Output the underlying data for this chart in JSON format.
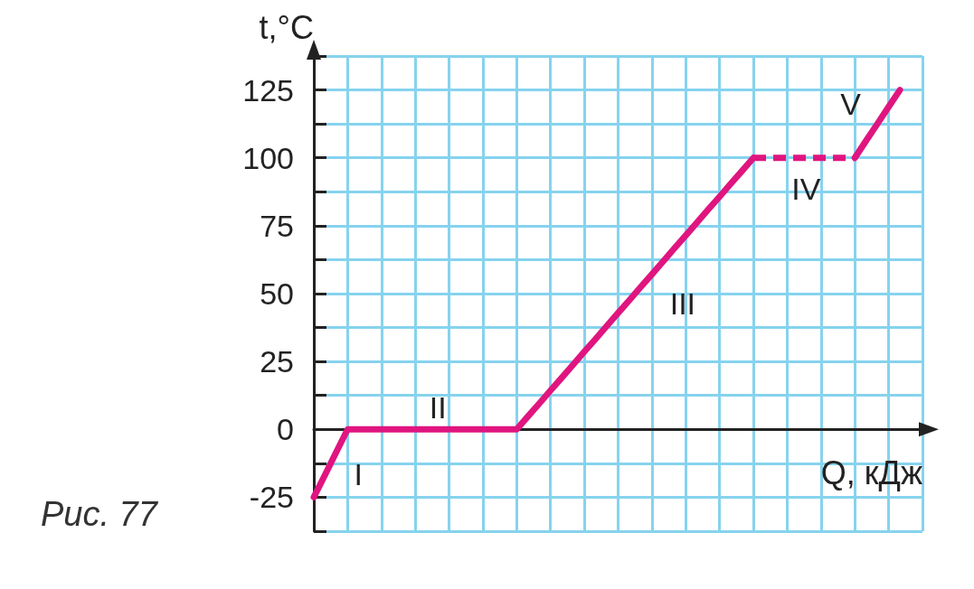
{
  "chart_data": {
    "type": "line",
    "xlabel": "Q, кДж",
    "ylabel": "t,°C",
    "categories": [
      null,
      null,
      null,
      null,
      null,
      null,
      null,
      null,
      null,
      null,
      null,
      null,
      null,
      null,
      null,
      null,
      null,
      null,
      null,
      null,
      null,
      null,
      null,
      null,
      null,
      null,
      null,
      null,
      null,
      null,
      null,
      null,
      null,
      null,
      null,
      null,
      null,
      null,
      null,
      null,
      null,
      null,
      null,
      null,
      null,
      null,
      null,
      null,
      null,
      null,
      null,
      null,
      null,
      null,
      null
    ],
    "ylim": [
      -37.5,
      137.5
    ],
    "yticks": [
      {
        "value": -37.5,
        "label": null
      },
      -25,
      {
        "value": -12.5,
        "label": null
      },
      0,
      {
        "value": 12.5,
        "label": null
      },
      25,
      {
        "value": 37.5,
        "label": null
      },
      50,
      {
        "value": 62.5,
        "label": null
      },
      75,
      {
        "value": 87.5,
        "label": null
      },
      100,
      {
        "value": 112.5,
        "label": null
      },
      125,
      {
        "value": 137.5,
        "label": null
      }
    ],
    "tick_labels": "y",
    "grid": true,
    "marker": "none",
    "series": [
      {
        "values": [
          -25,
          -16.7,
          -8.3,
          0,
          0,
          0,
          0,
          0,
          0,
          0,
          0,
          0,
          0,
          0,
          0,
          0,
          0,
          0,
          0,
          4.8,
          9.5,
          14.3,
          19.0,
          23.8,
          28.6,
          33.3,
          38.1,
          42.9,
          47.6,
          52.4,
          57.1,
          61.9,
          66.7,
          71.4,
          76.2,
          81.0,
          85.7,
          90.5,
          95.2,
          100,
          null,
          null,
          null,
          null,
          null,
          null,
          null,
          null,
          null,
          null,
          null,
          null,
          null,
          null,
          null
        ],
        "color": "#e0157f",
        "line_style": "solid"
      },
      {
        "values": [
          null,
          null,
          null,
          null,
          null,
          null,
          null,
          null,
          null,
          null,
          null,
          null,
          null,
          null,
          null,
          null,
          null,
          null,
          null,
          null,
          null,
          null,
          null,
          null,
          null,
          null,
          null,
          null,
          null,
          null,
          null,
          null,
          null,
          null,
          null,
          null,
          null,
          null,
          null,
          100,
          100,
          100,
          100,
          100,
          100,
          100,
          100,
          100,
          100,
          null,
          null,
          null,
          null,
          null,
          null
        ],
        "color": "#e0157f",
        "line_style": "dashed"
      },
      {
        "values": [
          null,
          null,
          null,
          null,
          null,
          null,
          null,
          null,
          null,
          null,
          null,
          null,
          null,
          null,
          null,
          null,
          null,
          null,
          null,
          null,
          null,
          null,
          null,
          null,
          null,
          null,
          null,
          null,
          null,
          null,
          null,
          null,
          null,
          null,
          null,
          null,
          null,
          null,
          null,
          null,
          null,
          null,
          null,
          null,
          null,
          null,
          null,
          null,
          100,
          106.3,
          112.5,
          118.8,
          125,
          null,
          null
        ],
        "color": "#e0157f",
        "line_style": "solid"
      }
    ],
    "annotations": [
      "I",
      "II",
      "III",
      "IV",
      "V",
      "Рис. 77"
    ]
  }
}
